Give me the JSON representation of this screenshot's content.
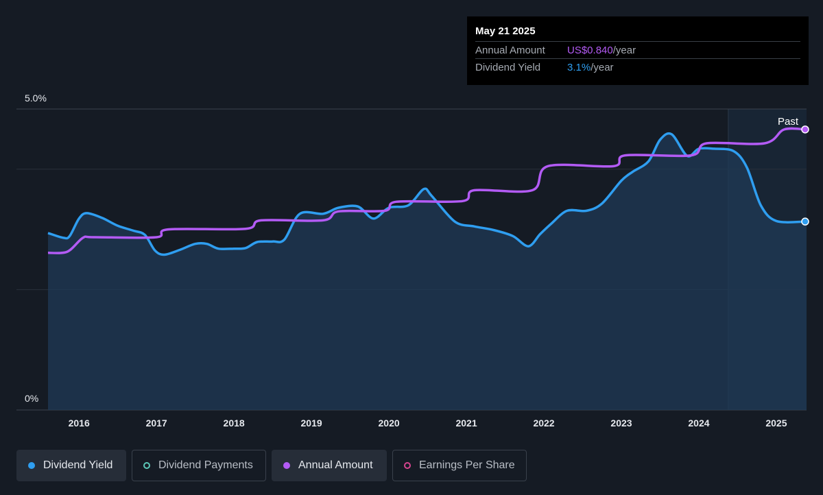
{
  "tooltip": {
    "date": "May 21 2025",
    "rows": [
      {
        "label": "Annual Amount",
        "value": "US$0.840",
        "unit": "/year"
      },
      {
        "label": "Dividend Yield",
        "value": "3.1%",
        "unit": "/year"
      }
    ]
  },
  "legend": [
    {
      "label": "Dividend Yield",
      "color": "#2f9ef0",
      "active": true,
      "filled": true
    },
    {
      "label": "Dividend Payments",
      "color": "#5cc8b8",
      "active": false,
      "filled": false
    },
    {
      "label": "Annual Amount",
      "color": "#b35bf5",
      "active": true,
      "filled": true
    },
    {
      "label": "Earnings Per Share",
      "color": "#d6458f",
      "active": false,
      "filled": false
    }
  ],
  "colors": {
    "background": "#151b24",
    "yield": "#2f9ef0",
    "annual_amount": "#b35bf5"
  },
  "chart_data": {
    "type": "line",
    "ylim": [
      0,
      5.0
    ],
    "y_tick_labels": [
      "5.0%",
      "0%"
    ],
    "x_tick_labels": [
      "2016",
      "2017",
      "2018",
      "2019",
      "2020",
      "2021",
      "2022",
      "2023",
      "2024",
      "2025"
    ],
    "x_range": [
      2015.6,
      2025.39
    ],
    "past_label": "Past",
    "past_region_start": 2024.38,
    "series": [
      {
        "name": "Dividend Yield",
        "unit": "%",
        "area": true,
        "points": [
          [
            2015.6,
            2.94
          ],
          [
            2015.8,
            2.86
          ],
          [
            2015.88,
            2.89
          ],
          [
            2016.0,
            3.18
          ],
          [
            2016.1,
            3.27
          ],
          [
            2016.3,
            3.19
          ],
          [
            2016.5,
            3.06
          ],
          [
            2016.7,
            2.98
          ],
          [
            2016.85,
            2.91
          ],
          [
            2016.98,
            2.65
          ],
          [
            2017.1,
            2.58
          ],
          [
            2017.3,
            2.66
          ],
          [
            2017.5,
            2.76
          ],
          [
            2017.65,
            2.76
          ],
          [
            2017.8,
            2.68
          ],
          [
            2018.0,
            2.68
          ],
          [
            2018.15,
            2.69
          ],
          [
            2018.3,
            2.79
          ],
          [
            2018.5,
            2.8
          ],
          [
            2018.65,
            2.83
          ],
          [
            2018.85,
            3.26
          ],
          [
            2019.15,
            3.26
          ],
          [
            2019.35,
            3.36
          ],
          [
            2019.6,
            3.38
          ],
          [
            2019.8,
            3.18
          ],
          [
            2020.0,
            3.36
          ],
          [
            2020.25,
            3.4
          ],
          [
            2020.45,
            3.67
          ],
          [
            2020.55,
            3.56
          ],
          [
            2020.85,
            3.13
          ],
          [
            2021.1,
            3.05
          ],
          [
            2021.35,
            2.99
          ],
          [
            2021.6,
            2.89
          ],
          [
            2021.8,
            2.72
          ],
          [
            2021.95,
            2.92
          ],
          [
            2022.1,
            3.1
          ],
          [
            2022.3,
            3.31
          ],
          [
            2022.55,
            3.31
          ],
          [
            2022.75,
            3.43
          ],
          [
            2023.0,
            3.81
          ],
          [
            2023.15,
            3.96
          ],
          [
            2023.35,
            4.13
          ],
          [
            2023.5,
            4.49
          ],
          [
            2023.65,
            4.58
          ],
          [
            2023.85,
            4.22
          ],
          [
            2024.0,
            4.34
          ],
          [
            2024.2,
            4.34
          ],
          [
            2024.45,
            4.3
          ],
          [
            2024.62,
            4.03
          ],
          [
            2024.8,
            3.4
          ],
          [
            2025.0,
            3.14
          ],
          [
            2025.39,
            3.13
          ]
        ]
      },
      {
        "name": "Annual Amount",
        "unit": "yield-scaled",
        "area": false,
        "points": [
          [
            2015.6,
            2.61
          ],
          [
            2015.85,
            2.63
          ],
          [
            2016.05,
            2.86
          ],
          [
            2016.2,
            2.87
          ],
          [
            2017.0,
            2.87
          ],
          [
            2017.15,
            3.0
          ],
          [
            2018.15,
            3.01
          ],
          [
            2018.35,
            3.15
          ],
          [
            2019.15,
            3.15
          ],
          [
            2019.35,
            3.3
          ],
          [
            2019.95,
            3.31
          ],
          [
            2020.1,
            3.46
          ],
          [
            2020.95,
            3.47
          ],
          [
            2021.1,
            3.65
          ],
          [
            2021.85,
            3.65
          ],
          [
            2022.05,
            4.05
          ],
          [
            2022.9,
            4.05
          ],
          [
            2023.05,
            4.23
          ],
          [
            2023.9,
            4.23
          ],
          [
            2024.1,
            4.43
          ],
          [
            2024.85,
            4.43
          ],
          [
            2025.1,
            4.66
          ],
          [
            2025.39,
            4.66
          ]
        ]
      }
    ]
  }
}
